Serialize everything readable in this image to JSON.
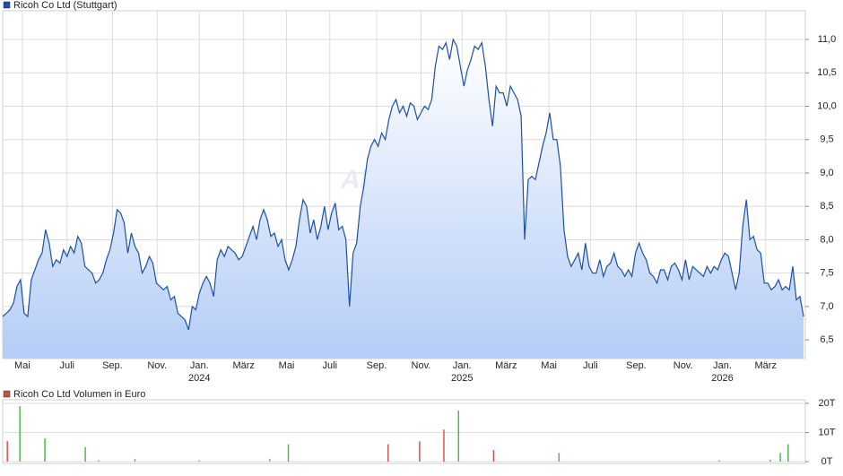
{
  "chart_data": [
    {
      "type": "area",
      "series": [
        {
          "name": "Ricoh Co Ltd (Stuttgart)",
          "color": "#1c4fa6",
          "x": [
            0,
            1,
            2,
            3,
            4,
            5,
            6,
            7,
            8,
            9,
            10,
            11,
            12,
            13,
            14,
            15,
            16,
            17,
            18,
            19,
            20,
            21,
            22,
            23,
            24,
            25,
            26,
            27,
            28,
            29,
            30,
            31,
            32,
            33,
            34,
            35,
            36,
            37,
            38,
            39,
            40,
            41,
            42,
            43,
            44,
            45,
            46,
            47,
            48,
            49,
            50,
            51,
            52,
            53,
            54,
            55,
            56,
            57,
            58,
            59,
            60,
            61,
            62,
            63,
            64,
            65,
            66,
            67,
            68,
            69,
            70,
            71,
            72,
            73,
            74,
            75,
            76,
            77,
            78,
            79,
            80,
            81,
            82,
            83,
            84,
            85,
            86,
            87,
            88,
            89,
            90,
            91,
            92,
            93,
            94,
            95,
            96,
            97,
            98,
            99,
            100,
            101,
            102,
            103,
            104,
            105,
            106,
            107,
            108,
            109,
            110,
            111,
            112,
            113,
            114,
            115,
            116,
            117,
            118,
            119,
            120,
            121,
            122,
            123,
            124,
            125,
            126,
            127,
            128,
            129,
            130,
            131,
            132,
            133,
            134,
            135,
            136,
            137,
            138,
            139,
            140,
            141,
            142,
            143,
            144,
            145,
            146,
            147,
            148,
            149,
            150,
            151,
            152,
            153,
            154,
            155,
            156,
            157,
            158,
            159,
            160,
            161,
            162,
            163,
            164,
            165,
            166,
            167,
            168,
            169,
            170,
            171,
            172,
            173,
            174,
            175,
            176,
            177,
            178,
            179,
            180,
            181,
            182,
            183,
            184,
            185,
            186,
            187,
            188,
            189,
            190,
            191,
            192,
            193,
            194,
            195,
            196,
            197,
            198,
            199,
            200,
            201,
            202,
            203,
            204,
            205,
            206,
            207,
            208,
            209,
            210,
            211,
            212,
            213,
            214,
            215,
            216,
            217,
            218,
            219,
            220,
            221,
            222,
            223,
            224
          ],
          "values": [
            6.85,
            6.9,
            6.95,
            7.05,
            7.3,
            7.4,
            6.9,
            6.85,
            7.4,
            7.55,
            7.7,
            7.8,
            8.15,
            7.95,
            7.6,
            7.7,
            7.65,
            7.85,
            7.75,
            7.9,
            7.8,
            8.05,
            7.95,
            7.6,
            7.55,
            7.5,
            7.35,
            7.4,
            7.5,
            7.7,
            7.85,
            8.1,
            8.45,
            8.4,
            8.25,
            7.8,
            8.1,
            7.9,
            7.8,
            7.5,
            7.6,
            7.75,
            7.65,
            7.35,
            7.3,
            7.25,
            7.3,
            7.1,
            7.15,
            6.9,
            6.85,
            6.8,
            6.65,
            7.0,
            6.95,
            7.2,
            7.35,
            7.45,
            7.35,
            7.15,
            7.7,
            7.85,
            7.75,
            7.9,
            7.85,
            7.8,
            7.7,
            7.75,
            7.9,
            8.05,
            8.2,
            8.0,
            8.3,
            8.45,
            8.3,
            8.05,
            8.1,
            7.9,
            8.0,
            7.7,
            7.55,
            7.7,
            7.9,
            8.3,
            8.6,
            8.5,
            8.1,
            8.3,
            8.0,
            8.2,
            8.5,
            8.15,
            8.4,
            8.55,
            8.15,
            8.2,
            8.0,
            7.0,
            7.8,
            7.95,
            8.5,
            8.8,
            9.2,
            9.4,
            9.5,
            9.4,
            9.6,
            9.5,
            9.8,
            10.0,
            10.1,
            9.9,
            10.0,
            9.85,
            10.05,
            10.0,
            9.8,
            9.9,
            10.0,
            9.95,
            10.1,
            10.6,
            10.9,
            10.85,
            10.95,
            10.7,
            11.0,
            10.9,
            10.6,
            10.3,
            10.55,
            10.7,
            10.9,
            10.85,
            10.95,
            10.6,
            10.1,
            9.7,
            10.3,
            10.2,
            10.2,
            10.0,
            10.3,
            10.2,
            10.1,
            9.85,
            8.0,
            8.9,
            8.95,
            8.9,
            9.15,
            9.4,
            9.6,
            9.9,
            9.5,
            9.5,
            9.1,
            8.15,
            7.75,
            7.6,
            7.7,
            7.8,
            7.55,
            7.95,
            7.6,
            7.5,
            7.5,
            7.7,
            7.45,
            7.6,
            7.65,
            7.8,
            7.6,
            7.55,
            7.45,
            7.55,
            7.45,
            7.8,
            7.95,
            7.8,
            7.7,
            7.5,
            7.45,
            7.35,
            7.55,
            7.55,
            7.4,
            7.6,
            7.65,
            7.55,
            7.4,
            7.7,
            7.4,
            7.6,
            7.55,
            7.5,
            7.45,
            7.6,
            7.5,
            7.6,
            7.55,
            7.7,
            7.8,
            7.75,
            7.5,
            7.25,
            7.5,
            8.2,
            8.6,
            8.0,
            8.05,
            7.85,
            7.8,
            7.35,
            7.35,
            7.25,
            7.3,
            7.4,
            7.25,
            7.3,
            7.25,
            7.6,
            7.1,
            7.15,
            6.85
          ]
        }
      ],
      "xlim": [
        0,
        224.5
      ],
      "ylim": [
        6.22,
        11.43
      ],
      "yticks": [
        {
          "value": 6.5,
          "label": "6,5"
        },
        {
          "value": 7.0,
          "label": "7,0"
        },
        {
          "value": 7.5,
          "label": "7,5"
        },
        {
          "value": 8.0,
          "label": "8,0"
        },
        {
          "value": 8.5,
          "label": "8,5"
        },
        {
          "value": 9.0,
          "label": "9,0"
        },
        {
          "value": 9.5,
          "label": "9,5"
        },
        {
          "value": 10.0,
          "label": "10,0"
        },
        {
          "value": 10.5,
          "label": "10,5"
        },
        {
          "value": 11.0,
          "label": "11,0"
        }
      ],
      "xticks": [
        {
          "value": 5.5,
          "label": "Mai"
        },
        {
          "value": 18.0,
          "label": "Juli"
        },
        {
          "value": 30.7,
          "label": "Sep."
        },
        {
          "value": 43.2,
          "label": "Nov."
        },
        {
          "value": 55.0,
          "label": "Jan."
        },
        {
          "value": 67.4,
          "label": "März"
        },
        {
          "value": 79.4,
          "label": "Mai"
        },
        {
          "value": 91.5,
          "label": "Juli"
        },
        {
          "value": 104.6,
          "label": "Sep."
        },
        {
          "value": 117.0,
          "label": "Nov."
        },
        {
          "value": 128.5,
          "label": "Jan."
        },
        {
          "value": 140.8,
          "label": "März"
        },
        {
          "value": 152.8,
          "label": "Mai"
        },
        {
          "value": 164.4,
          "label": "Juli"
        },
        {
          "value": 177.2,
          "label": "Sep."
        },
        {
          "value": 190.3,
          "label": "Nov."
        },
        {
          "value": 201.3,
          "label": "Jan."
        },
        {
          "value": 213.4,
          "label": "März"
        }
      ],
      "year_ticks": [
        {
          "value": 55.0,
          "label": "2024"
        },
        {
          "value": 128.5,
          "label": "2025"
        },
        {
          "value": 201.3,
          "label": "2026"
        }
      ],
      "watermark": "ARIVA.DE",
      "grid": true
    },
    {
      "type": "bar",
      "series": [
        {
          "name": "Ricoh Co Ltd Volumen in Euro",
          "color": "#c0504d",
          "x": [
            1.3,
            4.8,
            11.8,
            23.1,
            26.9,
            37.0,
            55.0,
            74.7,
            79.9,
            107.8,
            116.6,
            123.4,
            127.5,
            137.3,
            155.6,
            200.4,
            214.7,
            217.5,
            219.7
          ],
          "values": [
            7,
            19,
            8,
            5,
            0.5,
            1,
            0.5,
            1,
            6,
            6,
            7,
            11,
            17.5,
            4,
            3,
            0.5,
            0.7,
            3,
            6
          ],
          "colors": [
            "#d9534f",
            "#4cbb4c",
            "#4cbb4c",
            "#4cbb4c",
            "#999999",
            "#999999",
            "#999999",
            "#999999",
            "#4cbb4c",
            "#d9534f",
            "#d9534f",
            "#d9534f",
            "#4cbb4c",
            "#d9534f",
            "#4cbb4c",
            "#999999",
            "#999999",
            "#4cbb4c",
            "#4cbb4c"
          ]
        }
      ],
      "xlim": [
        0,
        224.5
      ],
      "ylim": [
        -0.6,
        21.2
      ],
      "yticks": [
        {
          "value": 0,
          "label": "0T"
        },
        {
          "value": 10,
          "label": "10T"
        },
        {
          "value": 20,
          "label": "20T"
        }
      ],
      "grid": true
    }
  ]
}
